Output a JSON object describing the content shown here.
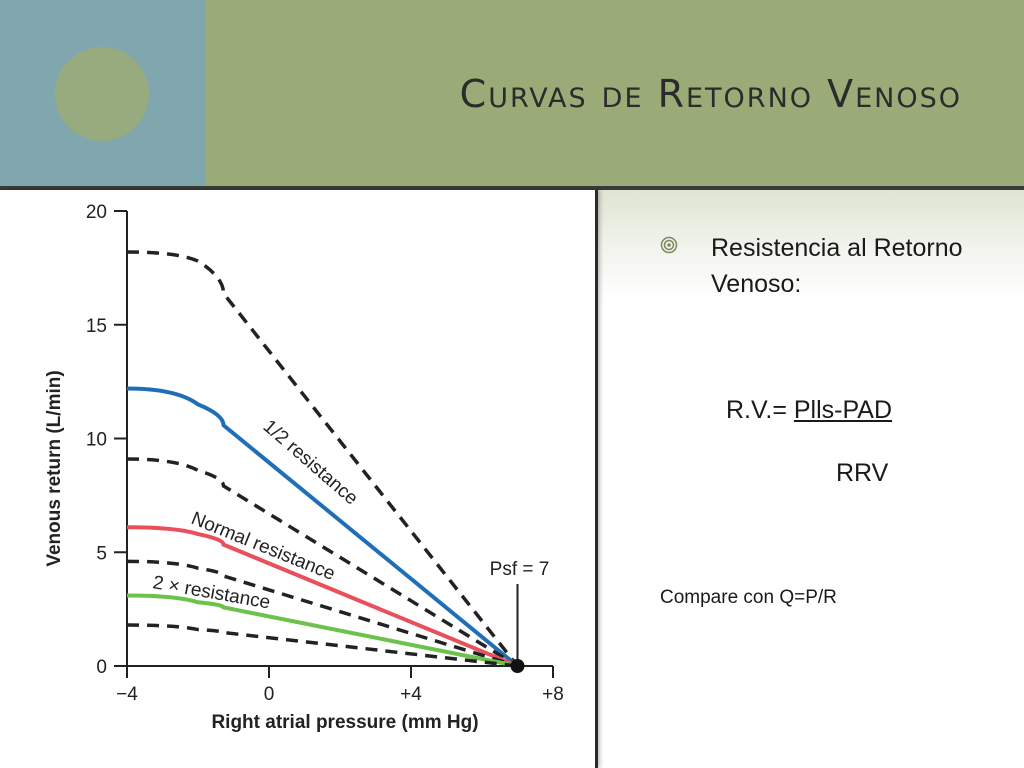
{
  "title": "Curvas de Retorno Venoso",
  "bullet": {
    "text": "Resistencia al Retorno Venoso:"
  },
  "formula": {
    "prefix": "R.V.= ",
    "numerator": "Plls-PAD",
    "denominator": "RRV"
  },
  "compare": "Compare con Q=P/R",
  "colors": {
    "header_left": "#7fa7ad",
    "header_right": "#9aab78",
    "half_resistance": "#1f6fb8",
    "normal_resistance": "#e8505b",
    "double_resistance": "#6cc24a",
    "dashed": "#222222"
  },
  "chart_data": {
    "type": "line",
    "xlabel": "Right atrial pressure (mm Hg)",
    "ylabel": "Venous return (L/min)",
    "xlim": [
      -4,
      8
    ],
    "ylim": [
      0,
      20
    ],
    "xticks": [
      -4,
      0,
      4,
      8
    ],
    "xtick_labels": [
      "−4",
      "0",
      "+4",
      "+8"
    ],
    "yticks": [
      0,
      5,
      10,
      15,
      20
    ],
    "ytick_labels": [
      "0",
      "5",
      "10",
      "15",
      "20"
    ],
    "grid": false,
    "series": [
      {
        "name": "",
        "style": "dashed",
        "color": "#222222",
        "x": [
          -4,
          -2,
          7
        ],
        "y": [
          18.2,
          17.8,
          0
        ]
      },
      {
        "name": "1/2 resistance",
        "style": "solid",
        "color": "#1f6fb8",
        "x": [
          -4,
          -2,
          7
        ],
        "y": [
          12.2,
          11.5,
          0
        ]
      },
      {
        "name": "",
        "style": "dashed",
        "color": "#222222",
        "x": [
          -4,
          -2,
          7
        ],
        "y": [
          9.1,
          8.6,
          0
        ]
      },
      {
        "name": "Normal resistance",
        "style": "solid",
        "color": "#e8505b",
        "x": [
          -4,
          -2,
          7
        ],
        "y": [
          6.1,
          5.8,
          0
        ]
      },
      {
        "name": "",
        "style": "dashed",
        "color": "#222222",
        "x": [
          -4,
          -2,
          7
        ],
        "y": [
          4.6,
          4.3,
          0
        ]
      },
      {
        "name": "2 × resistance",
        "style": "solid",
        "color": "#6cc24a",
        "x": [
          -4,
          -2,
          7
        ],
        "y": [
          3.1,
          2.8,
          0
        ]
      },
      {
        "name": "",
        "style": "dashed",
        "color": "#222222",
        "x": [
          -4,
          -2,
          7
        ],
        "y": [
          1.8,
          1.6,
          0
        ]
      }
    ],
    "annotations": [
      {
        "text": "Psf = 7",
        "x": 7,
        "y": 0
      }
    ]
  }
}
